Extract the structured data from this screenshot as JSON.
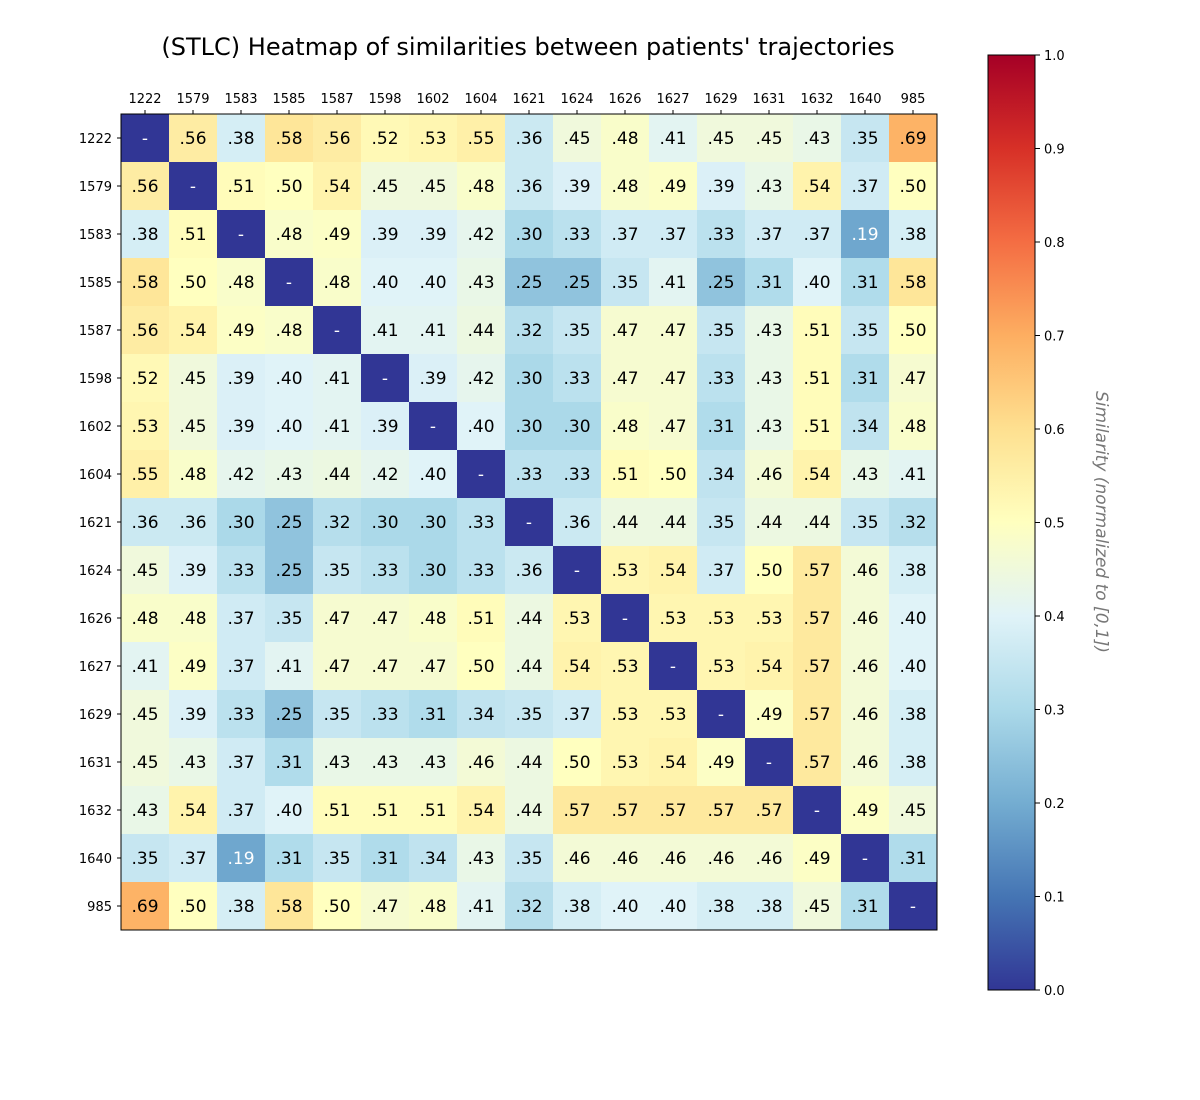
{
  "chart_data": {
    "type": "heatmap",
    "title": "(STLC) Heatmap of similarities between patients' trajectories",
    "categories": [
      "1222",
      "1579",
      "1583",
      "1585",
      "1587",
      "1598",
      "1602",
      "1604",
      "1621",
      "1624",
      "1626",
      "1627",
      "1629",
      "1631",
      "1632",
      "1640",
      "985"
    ],
    "values": [
      [
        null,
        0.56,
        0.38,
        0.58,
        0.56,
        0.52,
        0.53,
        0.55,
        0.36,
        0.45,
        0.48,
        0.41,
        0.45,
        0.45,
        0.43,
        0.35,
        0.69
      ],
      [
        0.56,
        null,
        0.51,
        0.5,
        0.54,
        0.45,
        0.45,
        0.48,
        0.36,
        0.39,
        0.48,
        0.49,
        0.39,
        0.43,
        0.54,
        0.37,
        0.5
      ],
      [
        0.38,
        0.51,
        null,
        0.48,
        0.49,
        0.39,
        0.39,
        0.42,
        0.3,
        0.33,
        0.37,
        0.37,
        0.33,
        0.37,
        0.37,
        0.19,
        0.38
      ],
      [
        0.58,
        0.5,
        0.48,
        null,
        0.48,
        0.4,
        0.4,
        0.43,
        0.25,
        0.25,
        0.35,
        0.41,
        0.25,
        0.31,
        0.4,
        0.31,
        0.58
      ],
      [
        0.56,
        0.54,
        0.49,
        0.48,
        null,
        0.41,
        0.41,
        0.44,
        0.32,
        0.35,
        0.47,
        0.47,
        0.35,
        0.43,
        0.51,
        0.35,
        0.5
      ],
      [
        0.52,
        0.45,
        0.39,
        0.4,
        0.41,
        null,
        0.39,
        0.42,
        0.3,
        0.33,
        0.47,
        0.47,
        0.33,
        0.43,
        0.51,
        0.31,
        0.47
      ],
      [
        0.53,
        0.45,
        0.39,
        0.4,
        0.41,
        0.39,
        null,
        0.4,
        0.3,
        0.3,
        0.48,
        0.47,
        0.31,
        0.43,
        0.51,
        0.34,
        0.48
      ],
      [
        0.55,
        0.48,
        0.42,
        0.43,
        0.44,
        0.42,
        0.4,
        null,
        0.33,
        0.33,
        0.51,
        0.5,
        0.34,
        0.46,
        0.54,
        0.43,
        0.41
      ],
      [
        0.36,
        0.36,
        0.3,
        0.25,
        0.32,
        0.3,
        0.3,
        0.33,
        null,
        0.36,
        0.44,
        0.44,
        0.35,
        0.44,
        0.44,
        0.35,
        0.32
      ],
      [
        0.45,
        0.39,
        0.33,
        0.25,
        0.35,
        0.33,
        0.3,
        0.33,
        0.36,
        null,
        0.53,
        0.54,
        0.37,
        0.5,
        0.57,
        0.46,
        0.38
      ],
      [
        0.48,
        0.48,
        0.37,
        0.35,
        0.47,
        0.47,
        0.48,
        0.51,
        0.44,
        0.53,
        null,
        0.53,
        0.53,
        0.53,
        0.57,
        0.46,
        0.4
      ],
      [
        0.41,
        0.49,
        0.37,
        0.41,
        0.47,
        0.47,
        0.47,
        0.5,
        0.44,
        0.54,
        0.53,
        null,
        0.53,
        0.54,
        0.57,
        0.46,
        0.4
      ],
      [
        0.45,
        0.39,
        0.33,
        0.25,
        0.35,
        0.33,
        0.31,
        0.34,
        0.35,
        0.37,
        0.53,
        0.53,
        null,
        0.49,
        0.57,
        0.46,
        0.38
      ],
      [
        0.45,
        0.43,
        0.37,
        0.31,
        0.43,
        0.43,
        0.43,
        0.46,
        0.44,
        0.5,
        0.53,
        0.54,
        0.49,
        null,
        0.57,
        0.46,
        0.38
      ],
      [
        0.43,
        0.54,
        0.37,
        0.4,
        0.51,
        0.51,
        0.51,
        0.54,
        0.44,
        0.57,
        0.57,
        0.57,
        0.57,
        0.57,
        null,
        0.49,
        0.45
      ],
      [
        0.35,
        0.37,
        0.19,
        0.31,
        0.35,
        0.31,
        0.34,
        0.43,
        0.35,
        0.46,
        0.46,
        0.46,
        0.46,
        0.46,
        0.49,
        null,
        0.31
      ],
      [
        0.69,
        0.5,
        0.38,
        0.58,
        0.5,
        0.47,
        0.48,
        0.41,
        0.32,
        0.38,
        0.4,
        0.4,
        0.38,
        0.38,
        0.45,
        0.31,
        null
      ]
    ],
    "diagonal_label": "-",
    "colorbar": {
      "label": "Similarity (normalized to [0,1])",
      "range": [
        0,
        1
      ],
      "ticks": [
        "0.0",
        "0.1",
        "0.2",
        "0.3",
        "0.4",
        "0.5",
        "0.6",
        "0.7",
        "0.8",
        "0.9",
        "1.0"
      ],
      "colormap": [
        "#313695",
        "#4575b4",
        "#74add1",
        "#abd9e9",
        "#e0f3f8",
        "#ffffbf",
        "#fee090",
        "#fdae61",
        "#f46d43",
        "#d73027",
        "#a50026"
      ]
    },
    "grid": false
  }
}
